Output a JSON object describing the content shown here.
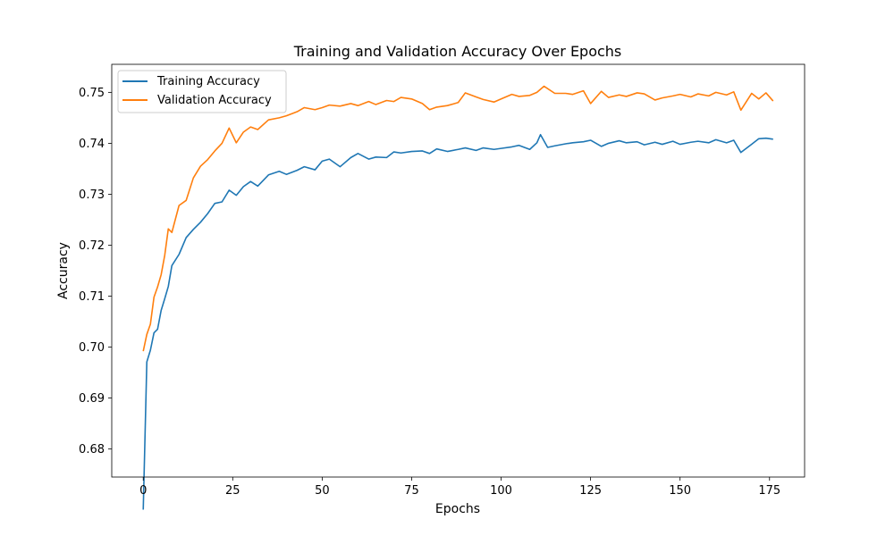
{
  "chart_data": {
    "type": "line",
    "title": "Training and Validation Accuracy Over Epochs",
    "xlabel": "Epochs",
    "ylabel": "Accuracy",
    "xlim": [
      -8.8,
      184.8
    ],
    "ylim": [
      0.6745,
      0.7555
    ],
    "xticks": [
      0,
      25,
      50,
      75,
      100,
      125,
      150,
      175
    ],
    "xtick_labels": [
      "0",
      "25",
      "50",
      "75",
      "100",
      "125",
      "150",
      "175"
    ],
    "yticks": [
      0.68,
      0.69,
      0.7,
      0.71,
      0.72,
      0.73,
      0.74,
      0.75
    ],
    "ytick_labels": [
      "0.68",
      "0.69",
      "0.70",
      "0.71",
      "0.72",
      "0.73",
      "0.74",
      "0.75"
    ],
    "grid": false,
    "legend": "top-left",
    "series": [
      {
        "name": "Training Accuracy",
        "color": "#1f77b4",
        "x": [
          0,
          1,
          2,
          3,
          4,
          5,
          6,
          7,
          8,
          10,
          12,
          14,
          16,
          18,
          20,
          22,
          24,
          26,
          28,
          30,
          32,
          35,
          38,
          40,
          43,
          45,
          48,
          50,
          52,
          55,
          58,
          60,
          63,
          65,
          68,
          70,
          72,
          75,
          78,
          80,
          82,
          85,
          88,
          90,
          93,
          95,
          98,
          100,
          103,
          105,
          108,
          110,
          111,
          113,
          115,
          118,
          120,
          123,
          125,
          128,
          130,
          133,
          135,
          138,
          140,
          143,
          145,
          148,
          150,
          153,
          155,
          158,
          160,
          163,
          165,
          167,
          170,
          172,
          174,
          176
        ],
        "y": [
          0.6681,
          0.6971,
          0.6994,
          0.7028,
          0.7035,
          0.7072,
          0.7095,
          0.7119,
          0.716,
          0.7182,
          0.7215,
          0.7231,
          0.7245,
          0.7262,
          0.7282,
          0.7285,
          0.7308,
          0.7298,
          0.7315,
          0.7325,
          0.7316,
          0.7338,
          0.7345,
          0.7339,
          0.7347,
          0.7354,
          0.7348,
          0.7365,
          0.7369,
          0.7354,
          0.7372,
          0.738,
          0.7369,
          0.7373,
          0.7372,
          0.7383,
          0.7381,
          0.7384,
          0.7385,
          0.738,
          0.7389,
          0.7384,
          0.7388,
          0.7391,
          0.7386,
          0.7391,
          0.7388,
          0.739,
          0.7393,
          0.7396,
          0.7388,
          0.7401,
          0.7417,
          0.7392,
          0.7395,
          0.7399,
          0.7401,
          0.7403,
          0.7406,
          0.7394,
          0.74,
          0.7405,
          0.7401,
          0.7403,
          0.7397,
          0.7402,
          0.7398,
          0.7404,
          0.7398,
          0.7402,
          0.7404,
          0.7401,
          0.7407,
          0.7401,
          0.7406,
          0.7382,
          0.7398,
          0.7409,
          0.741,
          0.7408
        ]
      },
      {
        "name": "Validation Accuracy",
        "color": "#ff7f0e",
        "x": [
          0,
          1,
          2,
          3,
          4,
          5,
          6,
          7,
          8,
          10,
          12,
          14,
          16,
          18,
          20,
          22,
          24,
          26,
          28,
          30,
          32,
          35,
          38,
          40,
          43,
          45,
          48,
          50,
          52,
          55,
          58,
          60,
          63,
          65,
          68,
          70,
          72,
          75,
          78,
          80,
          82,
          85,
          88,
          90,
          93,
          95,
          98,
          100,
          103,
          105,
          108,
          110,
          112,
          115,
          118,
          120,
          123,
          125,
          128,
          130,
          133,
          135,
          138,
          140,
          143,
          145,
          148,
          150,
          153,
          155,
          158,
          160,
          163,
          165,
          167,
          170,
          172,
          174,
          176
        ],
        "y": [
          0.6992,
          0.7025,
          0.7045,
          0.7098,
          0.7118,
          0.7142,
          0.718,
          0.7232,
          0.7225,
          0.7278,
          0.7288,
          0.7332,
          0.7355,
          0.7368,
          0.7385,
          0.74,
          0.743,
          0.7401,
          0.7422,
          0.7432,
          0.7427,
          0.7446,
          0.745,
          0.7454,
          0.7462,
          0.747,
          0.7466,
          0.747,
          0.7475,
          0.7473,
          0.7478,
          0.7474,
          0.7482,
          0.7476,
          0.7484,
          0.7482,
          0.749,
          0.7487,
          0.7478,
          0.7466,
          0.7471,
          0.7474,
          0.748,
          0.7499,
          0.7491,
          0.7486,
          0.7481,
          0.7487,
          0.7496,
          0.7492,
          0.7494,
          0.75,
          0.7512,
          0.7498,
          0.7498,
          0.7496,
          0.7503,
          0.7478,
          0.7502,
          0.749,
          0.7495,
          0.7492,
          0.7499,
          0.7497,
          0.7485,
          0.7489,
          0.7493,
          0.7496,
          0.7491,
          0.7497,
          0.7493,
          0.75,
          0.7495,
          0.7501,
          0.7465,
          0.7498,
          0.7487,
          0.7499,
          0.7483
        ]
      }
    ]
  }
}
